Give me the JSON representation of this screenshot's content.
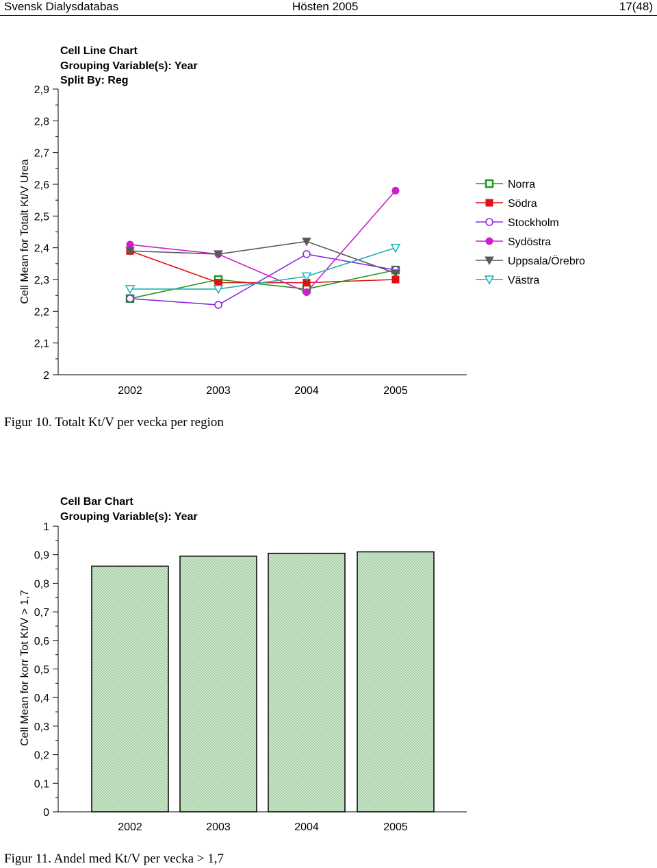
{
  "header": {
    "left": "Svensk Dialysdatabas",
    "center": "Hösten 2005",
    "right": "17(48)"
  },
  "chart_data": [
    {
      "type": "line",
      "title": "Cell Line Chart",
      "subtitle_lines": [
        "Grouping Variable(s): Year",
        "Split By: Reg"
      ],
      "ylabel": "Cell Mean for Totalt Kt/V Urea",
      "xlabel": "",
      "x": [
        "2002",
        "2003",
        "2004",
        "2005"
      ],
      "ylim": [
        2,
        2.9
      ],
      "yticks": [
        "2",
        "2,1",
        "2,2",
        "2,3",
        "2,4",
        "2,5",
        "2,6",
        "2,7",
        "2,8",
        "2,9"
      ],
      "legend_position": "right",
      "series": [
        {
          "name": "Norra",
          "color": "#1a9a1a",
          "marker": "open-square",
          "values": [
            2.24,
            2.3,
            2.27,
            2.33
          ]
        },
        {
          "name": "Södra",
          "color": "#e01010",
          "marker": "filled-square",
          "values": [
            2.39,
            2.29,
            2.29,
            2.3
          ]
        },
        {
          "name": "Stockholm",
          "color": "#8a2be2",
          "marker": "open-circle",
          "values": [
            2.24,
            2.22,
            2.38,
            2.33
          ]
        },
        {
          "name": "Sydöstra",
          "color": "#cc1ecc",
          "marker": "filled-circle",
          "values": [
            2.41,
            2.38,
            2.26,
            2.58
          ]
        },
        {
          "name": "Uppsala/Örebro",
          "color": "#5a5a5a",
          "marker": "filled-triangle-down",
          "values": [
            2.39,
            2.38,
            2.42,
            2.32
          ]
        },
        {
          "name": "Västra",
          "color": "#1ab0b0",
          "marker": "open-triangle-down",
          "values": [
            2.27,
            2.27,
            2.31,
            2.4
          ]
        }
      ],
      "caption": "Figur 10. Totalt Kt/V per vecka per region"
    },
    {
      "type": "bar",
      "title": "Cell Bar Chart",
      "subtitle_lines": [
        "Grouping Variable(s): Year"
      ],
      "ylabel": "Cell Mean for korr Tot Kt/V > 1,7",
      "xlabel": "",
      "categories": [
        "2002",
        "2003",
        "2004",
        "2005"
      ],
      "values": [
        0.86,
        0.895,
        0.905,
        0.91
      ],
      "ylim": [
        0,
        1
      ],
      "yticks": [
        "0",
        "0,1",
        "0,2",
        "0,3",
        "0,4",
        "0,5",
        "0,6",
        "0,7",
        "0,8",
        "0,9",
        "1"
      ],
      "bar_color": "#cfe8cf",
      "caption": "Figur 11. Andel med Kt/V per vecka > 1,7"
    }
  ]
}
